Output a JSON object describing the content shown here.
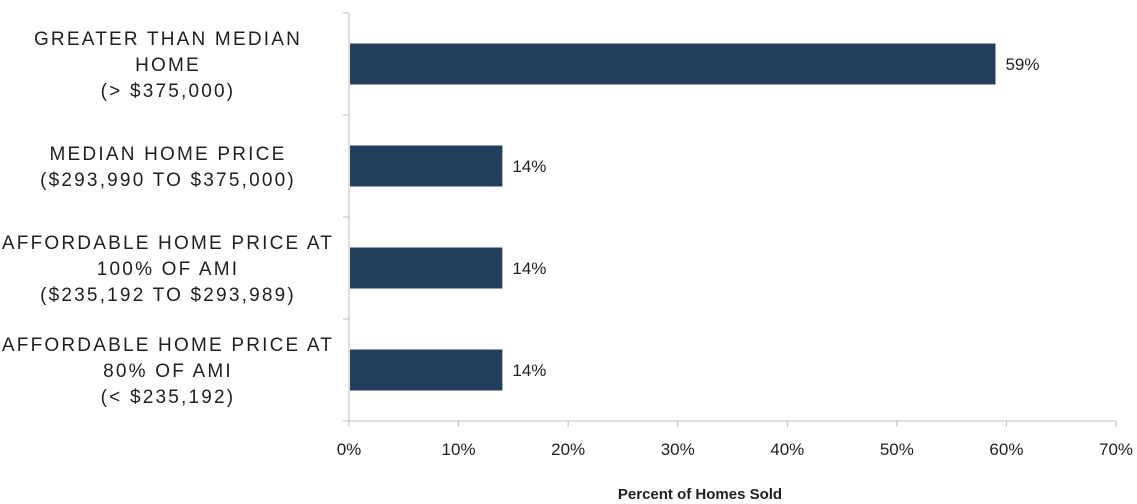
{
  "chart_data": {
    "type": "bar",
    "orientation": "horizontal",
    "categories": [
      [
        "GREATER THAN MEDIAN",
        "HOME",
        "(> $375,000)"
      ],
      [
        "MEDIAN HOME PRICE",
        "($293,990 TO $375,000)"
      ],
      [
        "AFFORDABLE HOME PRICE AT",
        "100% OF AMI",
        "($235,192 TO $293,989)"
      ],
      [
        "AFFORDABLE HOME PRICE AT",
        "80% OF AMI",
        "(< $235,192)"
      ]
    ],
    "values": [
      59,
      14,
      14,
      14
    ],
    "data_labels": [
      "59%",
      "14%",
      "14%",
      "14%"
    ],
    "xlabel": "Percent of Homes Sold",
    "xlim": [
      0,
      70
    ],
    "xticks": [
      0,
      10,
      20,
      30,
      40,
      50,
      60,
      70
    ],
    "xtick_labels": [
      "0%",
      "10%",
      "20%",
      "30%",
      "40%",
      "50%",
      "60%",
      "70%"
    ],
    "grid": false,
    "legend": "none",
    "colors": {
      "bar": "#243f5e",
      "axis": "#bfbfbf",
      "text": "#1f1f1f"
    }
  }
}
